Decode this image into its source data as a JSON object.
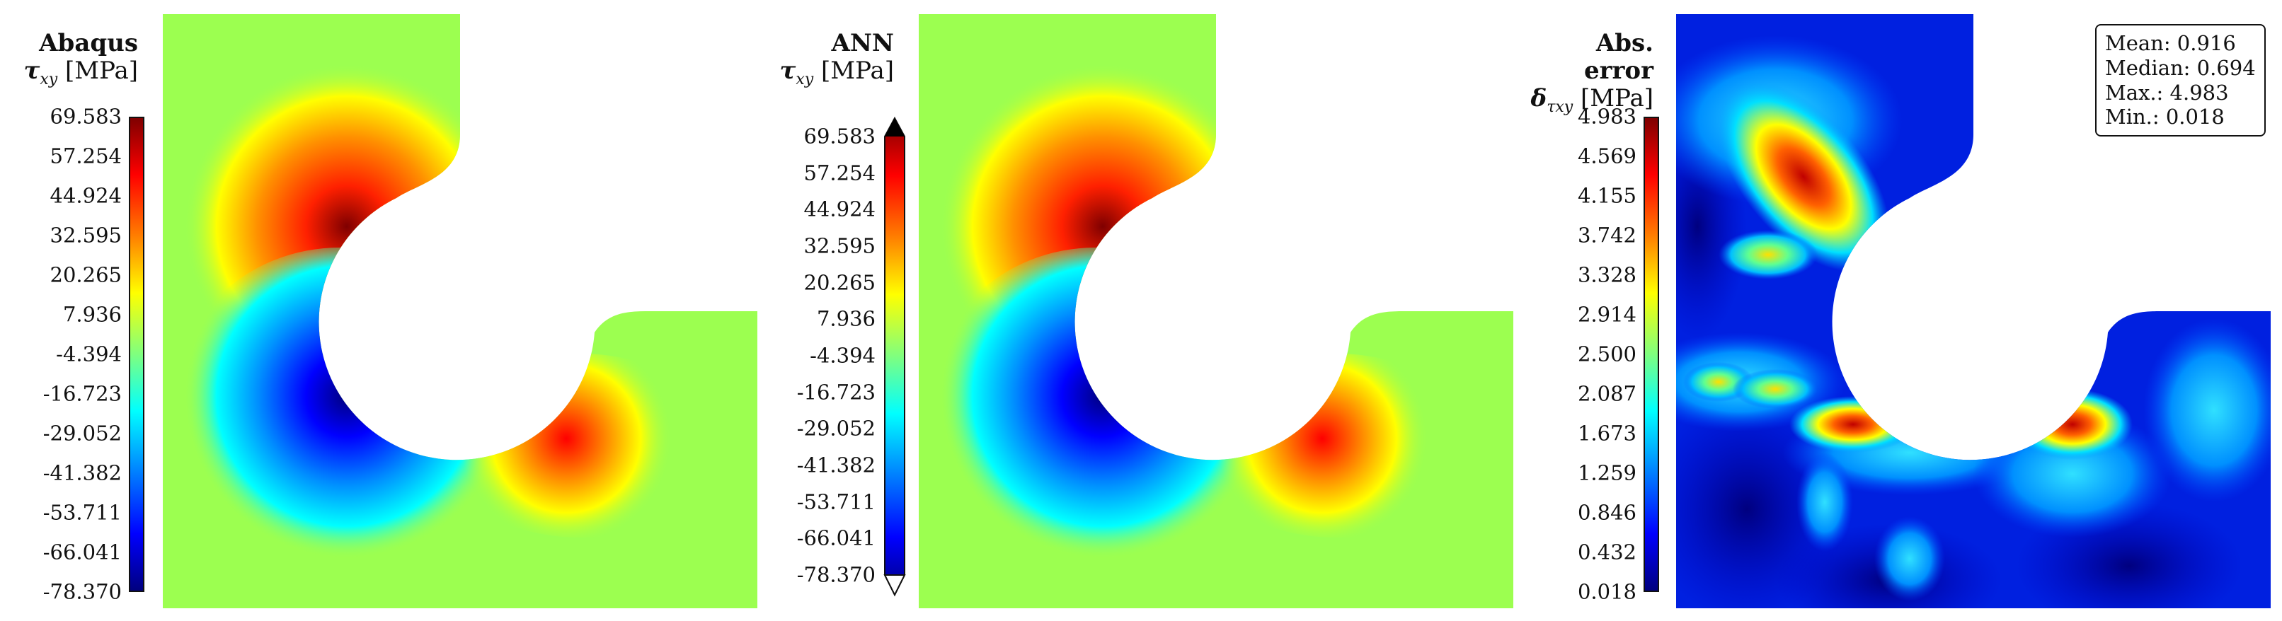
{
  "panels": [
    {
      "id": "abaqus",
      "title": "Abaqus",
      "quantity_symbol": "τ",
      "quantity_subscript": "xy",
      "unit": "[MPa]",
      "ticks": [
        "69.583",
        "57.254",
        "44.924",
        "32.595",
        "20.265",
        "7.936",
        "-4.394",
        "-16.723",
        "-29.052",
        "-41.382",
        "-53.711",
        "-66.041",
        "-78.370"
      ]
    },
    {
      "id": "ann",
      "title": "ANN",
      "quantity_symbol": "τ",
      "quantity_subscript": "xy",
      "unit": "[MPa]",
      "ticks": [
        "69.583",
        "57.254",
        "44.924",
        "32.595",
        "20.265",
        "7.936",
        "-4.394",
        "-16.723",
        "-29.052",
        "-41.382",
        "-53.711",
        "-66.041",
        "-78.370"
      ]
    },
    {
      "id": "error",
      "title": "Abs. error",
      "quantity_symbol": "δ",
      "quantity_subscript": "τxy",
      "unit": "[MPa]",
      "ticks": [
        "4.983",
        "4.569",
        "4.155",
        "3.742",
        "3.328",
        "2.914",
        "2.500",
        "2.087",
        "1.673",
        "1.259",
        "0.846",
        "0.432",
        "0.018"
      ]
    }
  ],
  "stats": {
    "mean": "Mean: 0.916",
    "median": "Median: 0.694",
    "max": "Max.: 4.983",
    "min": "Min.: 0.018"
  },
  "colormap": [
    "#00007f",
    "#0000ff",
    "#007fff",
    "#00ffff",
    "#7fff7f",
    "#ffff00",
    "#ff7f00",
    "#ff0000",
    "#7f0000"
  ]
}
